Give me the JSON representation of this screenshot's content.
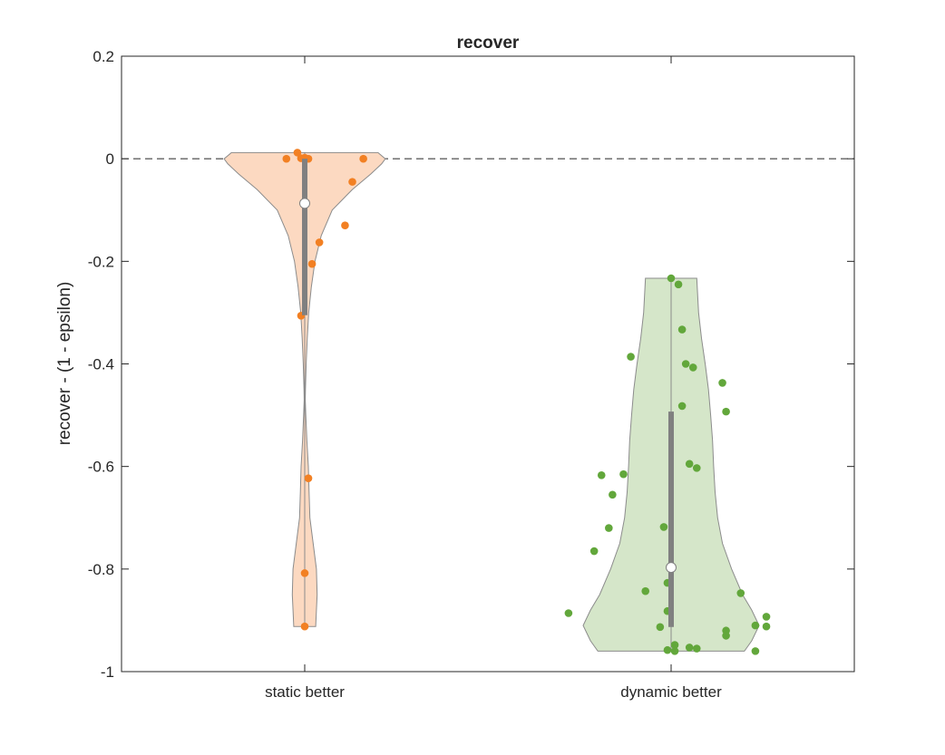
{
  "chart_data": {
    "type": "violin",
    "title": "recover",
    "xlabel": "",
    "ylabel": "recover - (1 - epsilon)",
    "ylim": [
      -1,
      0.2
    ],
    "yticks": [
      0.2,
      0,
      -0.2,
      -0.4,
      -0.6,
      -0.8,
      -1
    ],
    "ytick_labels": [
      "0.2",
      "0",
      "-0.2",
      "-0.4",
      "-0.6",
      "-0.8",
      "-1"
    ],
    "xlim": [
      0.5,
      2.5
    ],
    "categories": [
      "static better",
      "dynamic better"
    ],
    "reference_line": {
      "y": 0,
      "style": "dashed",
      "color": "#000000"
    },
    "grid": false,
    "series": [
      {
        "category": "static better",
        "fill_color": "#fcd9c1",
        "point_color": "#f28023",
        "median": -0.087,
        "q1": -0.305,
        "q3": 0.0,
        "min": -0.912,
        "max": 0.012,
        "density": [
          [
            0.012,
            0.2
          ],
          [
            0.0,
            0.22
          ],
          [
            -0.01,
            0.21
          ],
          [
            -0.03,
            0.18
          ],
          [
            -0.06,
            0.13
          ],
          [
            -0.1,
            0.075
          ],
          [
            -0.15,
            0.045
          ],
          [
            -0.2,
            0.028
          ],
          [
            -0.25,
            0.018
          ],
          [
            -0.3,
            0.011
          ],
          [
            -0.35,
            0.007
          ],
          [
            -0.4,
            0.004
          ],
          [
            -0.45,
            0.002
          ],
          [
            -0.47,
            0.0015
          ],
          [
            -0.5,
            0.003
          ],
          [
            -0.55,
            0.006
          ],
          [
            -0.6,
            0.01
          ],
          [
            -0.65,
            0.012
          ],
          [
            -0.7,
            0.014
          ],
          [
            -0.75,
            0.023
          ],
          [
            -0.8,
            0.032
          ],
          [
            -0.85,
            0.034
          ],
          [
            -0.88,
            0.032
          ],
          [
            -0.912,
            0.03
          ]
        ],
        "points": [
          [
            0.95,
            0.0
          ],
          [
            0.98,
            0.012
          ],
          [
            0.99,
            0.001
          ],
          [
            1.0,
            0.002
          ],
          [
            1.01,
            0.0
          ],
          [
            1.16,
            0.0
          ],
          [
            1.13,
            -0.045
          ],
          [
            1.11,
            -0.13
          ],
          [
            1.04,
            -0.163
          ],
          [
            1.02,
            -0.205
          ],
          [
            0.99,
            -0.306
          ],
          [
            1.01,
            -0.623
          ],
          [
            1.0,
            -0.808
          ],
          [
            1.0,
            -0.912
          ]
        ]
      },
      {
        "category": "dynamic better",
        "fill_color": "#d5e6c9",
        "point_color": "#62a73b",
        "median": -0.797,
        "q1": -0.913,
        "q3": -0.493,
        "min": -0.96,
        "max": -0.233,
        "density": [
          [
            -0.233,
            0.07
          ],
          [
            -0.26,
            0.072
          ],
          [
            -0.3,
            0.075
          ],
          [
            -0.35,
            0.083
          ],
          [
            -0.4,
            0.093
          ],
          [
            -0.45,
            0.102
          ],
          [
            -0.5,
            0.108
          ],
          [
            -0.55,
            0.113
          ],
          [
            -0.6,
            0.116
          ],
          [
            -0.65,
            0.12
          ],
          [
            -0.7,
            0.127
          ],
          [
            -0.75,
            0.14
          ],
          [
            -0.8,
            0.165
          ],
          [
            -0.85,
            0.195
          ],
          [
            -0.88,
            0.22
          ],
          [
            -0.91,
            0.24
          ],
          [
            -0.94,
            0.22
          ],
          [
            -0.96,
            0.2
          ]
        ],
        "points": [
          [
            2.0,
            -0.233
          ],
          [
            2.02,
            -0.245
          ],
          [
            2.03,
            -0.333
          ],
          [
            1.89,
            -0.386
          ],
          [
            2.04,
            -0.4
          ],
          [
            2.06,
            -0.407
          ],
          [
            2.14,
            -0.437
          ],
          [
            2.03,
            -0.482
          ],
          [
            2.15,
            -0.493
          ],
          [
            2.05,
            -0.595
          ],
          [
            2.07,
            -0.603
          ],
          [
            1.81,
            -0.617
          ],
          [
            1.87,
            -0.615
          ],
          [
            1.84,
            -0.655
          ],
          [
            1.83,
            -0.72
          ],
          [
            1.98,
            -0.718
          ],
          [
            1.79,
            -0.765
          ],
          [
            1.99,
            -0.827
          ],
          [
            1.93,
            -0.843
          ],
          [
            2.19,
            -0.847
          ],
          [
            1.72,
            -0.886
          ],
          [
            1.99,
            -0.882
          ],
          [
            2.26,
            -0.893
          ],
          [
            1.97,
            -0.913
          ],
          [
            2.23,
            -0.91
          ],
          [
            2.26,
            -0.912
          ],
          [
            2.15,
            -0.92
          ],
          [
            2.15,
            -0.93
          ],
          [
            2.01,
            -0.948
          ],
          [
            2.05,
            -0.953
          ],
          [
            2.07,
            -0.955
          ],
          [
            1.99,
            -0.958
          ],
          [
            2.01,
            -0.96
          ],
          [
            2.23,
            -0.96
          ]
        ]
      }
    ]
  }
}
